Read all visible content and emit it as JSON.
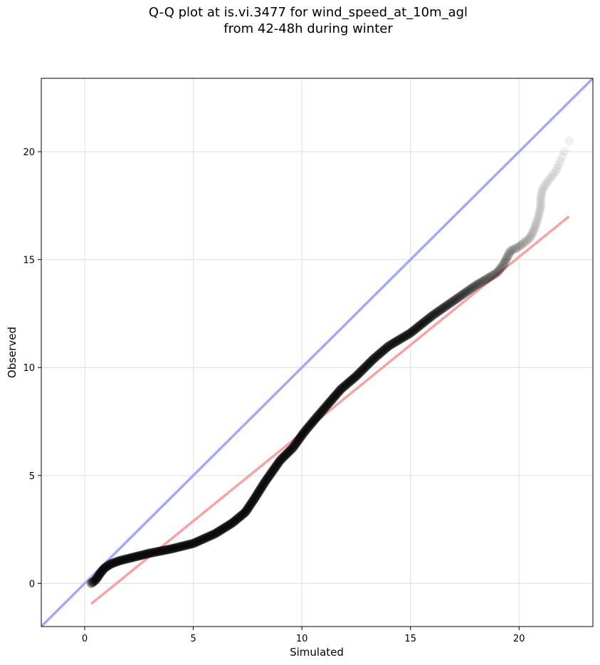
{
  "chart_data": {
    "type": "scatter",
    "title_line1": "Q-Q plot at is.vi.3477 for wind_speed_at_10m_agl",
    "title_line2": "from 42-48h during winter",
    "xlabel": "Simulated",
    "ylabel": "Observed",
    "xlim": [
      -2,
      23.4
    ],
    "ylim": [
      -2,
      23.4
    ],
    "xticks": [
      0,
      5,
      10,
      15,
      20
    ],
    "yticks": [
      0,
      5,
      10,
      15,
      20
    ],
    "grid": true,
    "curve_knots": [
      [
        0.3,
        0.0
      ],
      [
        0.5,
        0.15
      ],
      [
        0.7,
        0.45
      ],
      [
        0.9,
        0.7
      ],
      [
        1.2,
        0.9
      ],
      [
        1.6,
        1.05
      ],
      [
        2.2,
        1.2
      ],
      [
        3.0,
        1.4
      ],
      [
        4.0,
        1.6
      ],
      [
        5.0,
        1.85
      ],
      [
        6.0,
        2.3
      ],
      [
        6.8,
        2.8
      ],
      [
        7.4,
        3.3
      ],
      [
        7.8,
        3.9
      ],
      [
        8.3,
        4.7
      ],
      [
        9.0,
        5.7
      ],
      [
        9.6,
        6.3
      ],
      [
        10.1,
        7.0
      ],
      [
        10.6,
        7.6
      ],
      [
        11.2,
        8.3
      ],
      [
        11.8,
        9.0
      ],
      [
        12.5,
        9.6
      ],
      [
        13.3,
        10.4
      ],
      [
        14.0,
        11.0
      ],
      [
        15.0,
        11.6
      ],
      [
        16.0,
        12.4
      ],
      [
        17.0,
        13.1
      ],
      [
        18.0,
        13.8
      ],
      [
        19.0,
        14.4
      ],
      [
        19.3,
        14.8
      ],
      [
        19.6,
        15.4
      ],
      [
        20.0,
        15.6
      ],
      [
        20.5,
        16.0
      ],
      [
        20.7,
        16.4
      ],
      [
        20.9,
        17.0
      ],
      [
        21.0,
        17.5
      ],
      [
        21.0,
        17.9
      ],
      [
        21.1,
        18.3
      ],
      [
        21.3,
        18.6
      ],
      [
        21.7,
        19.1
      ],
      [
        22.3,
        20.5
      ]
    ],
    "sample_count": 520,
    "series": [
      {
        "role": "identity_line",
        "x": [
          -2,
          23.4
        ],
        "y": [
          -2,
          23.4
        ],
        "color": "#a5a8f2"
      },
      {
        "role": "fit_line",
        "x": [
          0.3,
          22.3
        ],
        "y": [
          -0.95,
          17.0
        ],
        "color": "#f5a3a3"
      }
    ],
    "point_color": "#000000"
  }
}
